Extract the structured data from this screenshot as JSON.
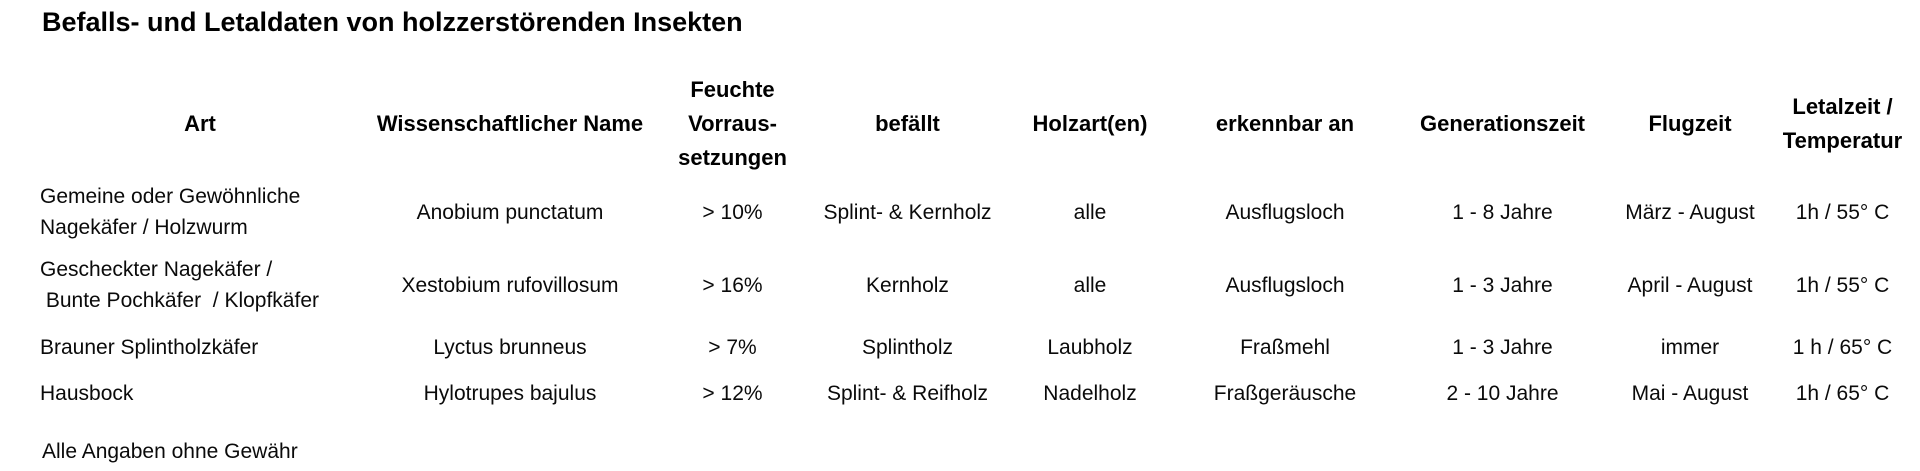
{
  "title": "Befalls- und Letaldaten von holzzerstörenden Insekten",
  "table": {
    "columns": [
      {
        "id": "art",
        "label": "Art"
      },
      {
        "id": "wissenschaftlicher_name",
        "label": "Wissenschaftlicher Name"
      },
      {
        "id": "feuchte_voraussetzungen",
        "label": "Feuchte\nVorraus-\nsetzungen"
      },
      {
        "id": "befaellt",
        "label": "befällt"
      },
      {
        "id": "holzarten",
        "label": "Holzart(en)"
      },
      {
        "id": "erkennbar_an",
        "label": "erkennbar an"
      },
      {
        "id": "generationszeit",
        "label": "Generationszeit"
      },
      {
        "id": "flugzeit",
        "label": "Flugzeit"
      },
      {
        "id": "letalzeit_temperatur",
        "label": "Letalzeit /\nTemperatur"
      }
    ],
    "rows": [
      {
        "art": "Gemeine oder Gewöhnliche\nNagekäfer / Holzwurm",
        "wissenschaftlicher_name": "Anobium punctatum",
        "feuchte_voraussetzungen": "> 10%",
        "befaellt": "Splint- & Kernholz",
        "holzarten": "alle",
        "erkennbar_an": "Ausflugsloch",
        "generationszeit": "1 - 8 Jahre",
        "flugzeit": "März - August",
        "letalzeit_temperatur": "1h / 55° C"
      },
      {
        "art": "Gescheckter Nagekäfer /\n Bunte Pochkäfer  / Klopfkäfer",
        "wissenschaftlicher_name": "Xestobium rufovillosum",
        "feuchte_voraussetzungen": "> 16%",
        "befaellt": "Kernholz",
        "holzarten": "alle",
        "erkennbar_an": "Ausflugsloch",
        "generationszeit": "1 - 3 Jahre",
        "flugzeit": "April - August",
        "letalzeit_temperatur": "1h / 55° C"
      },
      {
        "art": "Brauner Splintholzkäfer",
        "wissenschaftlicher_name": "Lyctus brunneus",
        "feuchte_voraussetzungen": "> 7%",
        "befaellt": "Splintholz",
        "holzarten": "Laubholz",
        "erkennbar_an": "Fraßmehl",
        "generationszeit": "1 - 3 Jahre",
        "flugzeit": "immer",
        "letalzeit_temperatur": "1 h / 65° C"
      },
      {
        "art": "Hausbock",
        "wissenschaftlicher_name": "Hylotrupes bajulus",
        "feuchte_voraussetzungen": "> 12%",
        "befaellt": "Splint- & Reifholz",
        "holzarten": "Nadelholz",
        "erkennbar_an": "Fraßgeräusche",
        "generationszeit": "2 - 10 Jahre",
        "flugzeit": "Mai - August",
        "letalzeit_temperatur": "1h / 65° C"
      }
    ]
  },
  "footer_note": "Alle Angaben ohne Gewähr"
}
